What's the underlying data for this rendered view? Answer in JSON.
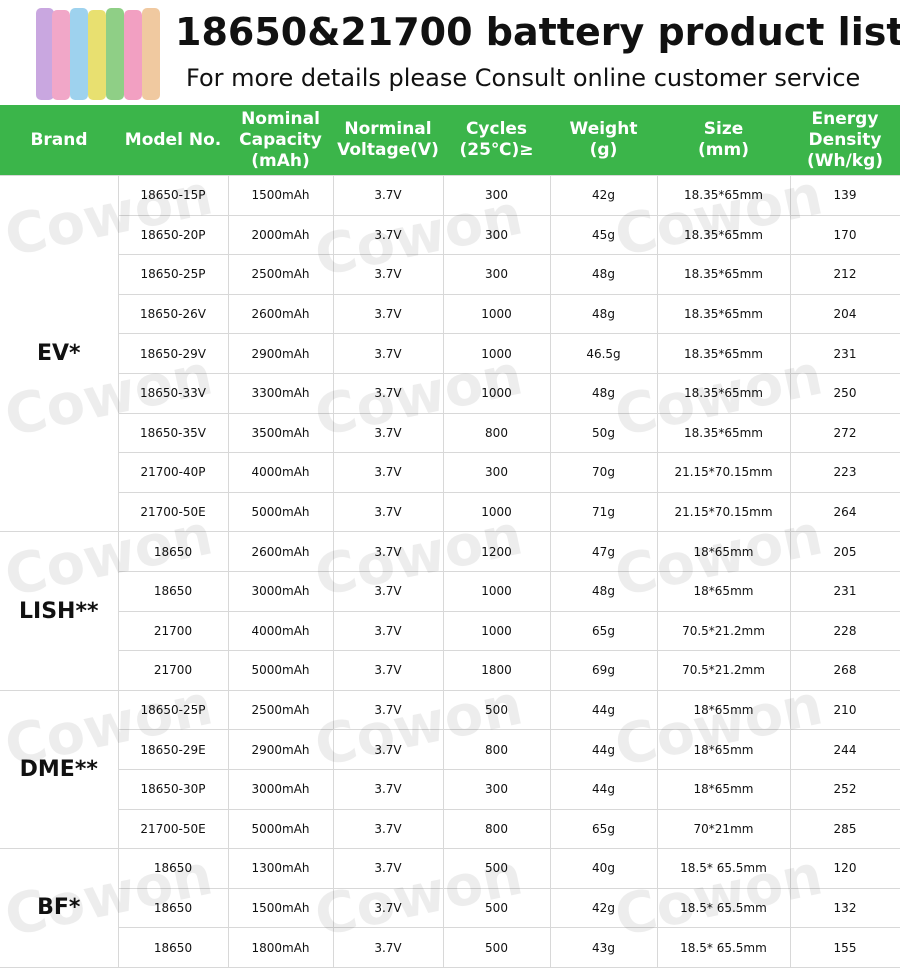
{
  "header": {
    "title": "18650&21700 battery product list",
    "subtitle": "For more details please Consult online customer service"
  },
  "watermark": "Cowon",
  "table": {
    "columns": [
      [
        "Brand"
      ],
      [
        "Model No."
      ],
      [
        "Nominal",
        "Capacity",
        "(mAh)"
      ],
      [
        "Norminal",
        "Voltage(V)"
      ],
      [
        "Cycles",
        "(25℃)≥"
      ],
      [
        "Weight",
        "(g)"
      ],
      [
        "Size",
        "(mm)"
      ],
      [
        "Energy",
        "Density",
        "(Wh/kg)"
      ]
    ],
    "groups": [
      {
        "brand": "EV*",
        "rows": [
          [
            "18650-15P",
            "1500mAh",
            "3.7V",
            "300",
            "42g",
            "18.35*65mm",
            "139"
          ],
          [
            "18650-20P",
            "2000mAh",
            "3.7V",
            "300",
            "45g",
            "18.35*65mm",
            "170"
          ],
          [
            "18650-25P",
            "2500mAh",
            "3.7V",
            "300",
            "48g",
            "18.35*65mm",
            "212"
          ],
          [
            "18650-26V",
            "2600mAh",
            "3.7V",
            "1000",
            "48g",
            "18.35*65mm",
            "204"
          ],
          [
            "18650-29V",
            "2900mAh",
            "3.7V",
            "1000",
            "46.5g",
            "18.35*65mm",
            "231"
          ],
          [
            "18650-33V",
            "3300mAh",
            "3.7V",
            "1000",
            "48g",
            "18.35*65mm",
            "250"
          ],
          [
            "18650-35V",
            "3500mAh",
            "3.7V",
            "800",
            "50g",
            "18.35*65mm",
            "272"
          ],
          [
            "21700-40P",
            "4000mAh",
            "3.7V",
            "300",
            "70g",
            "21.15*70.15mm",
            "223"
          ],
          [
            "21700-50E",
            "5000mAh",
            "3.7V",
            "1000",
            "71g",
            "21.15*70.15mm",
            "264"
          ]
        ]
      },
      {
        "brand": "LISH**",
        "rows": [
          [
            "18650",
            "2600mAh",
            "3.7V",
            "1200",
            "47g",
            "18*65mm",
            "205"
          ],
          [
            "18650",
            "3000mAh",
            "3.7V",
            "1000",
            "48g",
            "18*65mm",
            "231"
          ],
          [
            "21700",
            "4000mAh",
            "3.7V",
            "1000",
            "65g",
            "70.5*21.2mm",
            "228"
          ],
          [
            "21700",
            "5000mAh",
            "3.7V",
            "1800",
            "69g",
            "70.5*21.2mm",
            "268"
          ]
        ]
      },
      {
        "brand": "DME**",
        "rows": [
          [
            "18650-25P",
            "2500mAh",
            "3.7V",
            "500",
            "44g",
            "18*65mm",
            "210"
          ],
          [
            "18650-29E",
            "2900mAh",
            "3.7V",
            "800",
            "44g",
            "18*65mm",
            "244"
          ],
          [
            "18650-30P",
            "3000mAh",
            "3.7V",
            "300",
            "44g",
            "18*65mm",
            "252"
          ],
          [
            "21700-50E",
            "5000mAh",
            "3.7V",
            "800",
            "65g",
            "70*21mm",
            "285"
          ]
        ]
      },
      {
        "brand": "BF*",
        "rows": [
          [
            "18650",
            "1300mAh",
            "3.7V",
            "500",
            "40g",
            "18.5* 65.5mm",
            "120"
          ],
          [
            "18650",
            "1500mAh",
            "3.7V",
            "500",
            "42g",
            "18.5* 65.5mm",
            "132"
          ],
          [
            "18650",
            "1800mAh",
            "3.7V",
            "500",
            "43g",
            "18.5* 65.5mm",
            "155"
          ]
        ]
      }
    ]
  }
}
